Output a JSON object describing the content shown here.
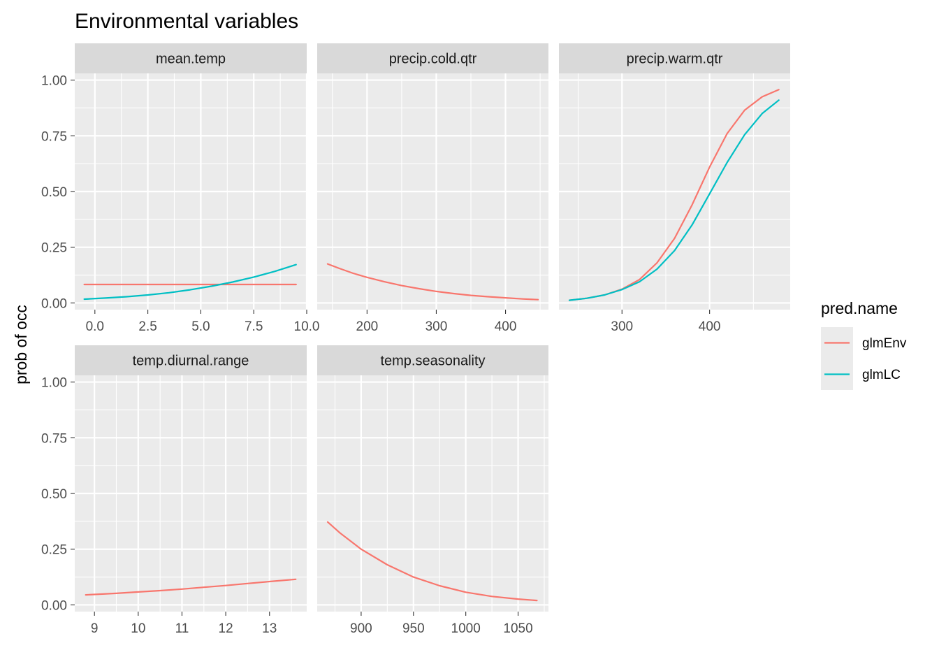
{
  "chart_data": {
    "type": "line",
    "title": "Environmental variables",
    "ylabel": "prob of occ",
    "xlabel": "",
    "ylim": [
      -0.03,
      1.03
    ],
    "y_ticks": [
      0.0,
      0.25,
      0.5,
      0.75,
      1.0
    ],
    "y_tick_labels": [
      "0.00",
      "0.25",
      "0.50",
      "0.75",
      "1.00"
    ],
    "grid": true,
    "legend": {
      "title": "pred.name",
      "position": "right",
      "entries": [
        {
          "name": "glmEnv",
          "color": "#F8766D"
        },
        {
          "name": "glmLC",
          "color": "#00BFC4"
        }
      ]
    },
    "panels": [
      {
        "name": "mean.temp",
        "xlim": [
          -0.95,
          10.0
        ],
        "x_ticks": [
          0,
          2.5,
          5,
          7.5,
          10
        ],
        "x_tick_labels": [
          "0.0",
          "2.5",
          "5.0",
          "7.5",
          "10.0"
        ],
        "series": [
          {
            "name": "glmEnv",
            "x": [
              -0.5,
              1,
              2,
              3,
              4,
              5,
              6,
              7,
              8,
              9,
              9.5
            ],
            "y": [
              0.083,
              0.083,
              0.083,
              0.083,
              0.083,
              0.083,
              0.083,
              0.083,
              0.083,
              0.083,
              0.083
            ]
          },
          {
            "name": "glmLC",
            "x": [
              -0.5,
              0.5,
              1.5,
              2.5,
              3.5,
              4.5,
              5.5,
              6.5,
              7.5,
              8.5,
              9.5
            ],
            "y": [
              0.017,
              0.022,
              0.028,
              0.036,
              0.046,
              0.059,
              0.075,
              0.094,
              0.116,
              0.142,
              0.172
            ]
          }
        ]
      },
      {
        "name": "precip.cold.qtr",
        "xlim": [
          128,
          462
        ],
        "x_ticks": [
          200,
          300,
          400
        ],
        "x_tick_labels": [
          "200",
          "300",
          "400"
        ],
        "series": [
          {
            "name": "glmEnv",
            "x": [
              143,
              160,
              180,
              200,
              225,
              250,
              275,
              300,
              325,
              350,
              375,
              400,
              425,
              447
            ],
            "y": [
              0.175,
              0.155,
              0.133,
              0.115,
              0.095,
              0.078,
              0.064,
              0.052,
              0.042,
              0.034,
              0.028,
              0.023,
              0.018,
              0.015
            ]
          }
        ]
      },
      {
        "name": "precip.warm.qtr",
        "xlim": [
          228,
          492
        ],
        "x_ticks": [
          300,
          400
        ],
        "x_tick_labels": [
          "300",
          "400"
        ],
        "series": [
          {
            "name": "glmEnv",
            "x": [
              240,
              260,
              280,
              300,
              320,
              340,
              360,
              380,
              400,
              420,
              440,
              460,
              479
            ],
            "y": [
              0.012,
              0.021,
              0.036,
              0.062,
              0.105,
              0.18,
              0.29,
              0.44,
              0.61,
              0.76,
              0.865,
              0.925,
              0.957
            ]
          },
          {
            "name": "glmLC",
            "x": [
              240,
              260,
              280,
              300,
              320,
              340,
              360,
              380,
              400,
              420,
              440,
              460,
              479
            ],
            "y": [
              0.012,
              0.021,
              0.036,
              0.06,
              0.095,
              0.152,
              0.235,
              0.35,
              0.49,
              0.63,
              0.755,
              0.85,
              0.91
            ]
          }
        ]
      },
      {
        "name": "temp.diurnal.range",
        "xlim": [
          8.55,
          13.85
        ],
        "x_ticks": [
          9,
          10,
          11,
          12,
          13
        ],
        "x_tick_labels": [
          "9",
          "10",
          "11",
          "12",
          "13"
        ],
        "series": [
          {
            "name": "glmEnv",
            "x": [
              8.8,
              9.5,
              10,
              10.5,
              11,
              11.5,
              12,
              12.5,
              13,
              13.6
            ],
            "y": [
              0.045,
              0.052,
              0.058,
              0.064,
              0.071,
              0.079,
              0.087,
              0.096,
              0.105,
              0.115
            ]
          }
        ]
      },
      {
        "name": "temp.seasonality",
        "xlim": [
          858,
          1079
        ],
        "x_ticks": [
          900,
          950,
          1000,
          1050
        ],
        "x_tick_labels": [
          "900",
          "950",
          "1000",
          "1050"
        ],
        "series": [
          {
            "name": "glmEnv",
            "x": [
              868,
              880,
              900,
              925,
              950,
              975,
              1000,
              1025,
              1050,
              1068
            ],
            "y": [
              0.372,
              0.322,
              0.25,
              0.18,
              0.125,
              0.086,
              0.057,
              0.038,
              0.026,
              0.02
            ]
          }
        ]
      }
    ]
  }
}
